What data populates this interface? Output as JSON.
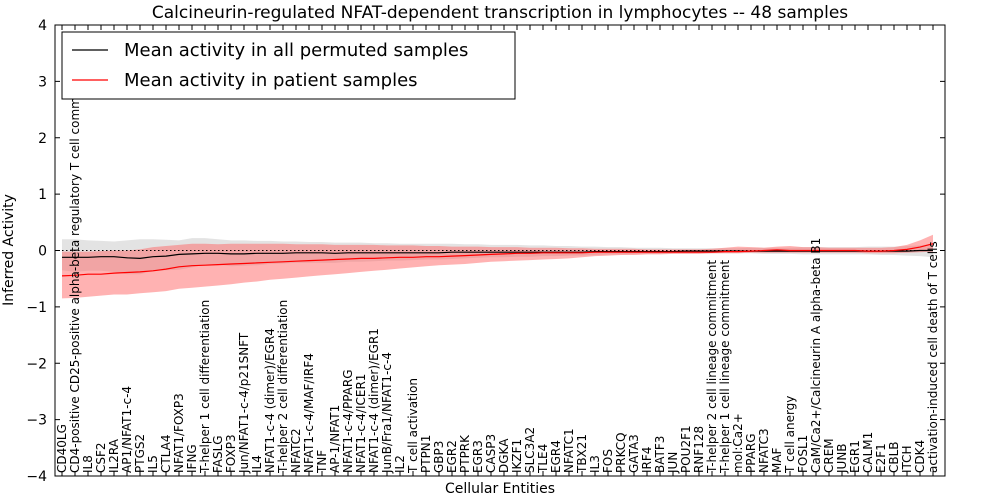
{
  "chart_data": {
    "type": "line",
    "title": "Calcineurin-regulated NFAT-dependent transcription in lymphocytes -- 48 samples",
    "xlabel": "Cellular Entities",
    "ylabel": "Inferred Activity",
    "ylim": [
      -4,
      4
    ],
    "yticks": [
      "4",
      "3",
      "2",
      "1",
      "0",
      "−1",
      "−2",
      "−3",
      "−4"
    ],
    "grid": false,
    "legend": {
      "placement": "top-left",
      "entries": [
        {
          "label": "Mean activity in all permuted samples",
          "color": "#000000"
        },
        {
          "label": "Mean activity in patient samples",
          "color": "#ff0000"
        }
      ]
    },
    "categories": [
      "CD40LG",
      "CD4-positive CD25-positive alpha-beta regulatory T cell commitment",
      "IL8",
      "CSF2",
      "IL2RA",
      "AP1/NFAT1-c-4",
      "PTGS2",
      "IL5",
      "CTLA4",
      "NFAT1/FOXP3",
      "IFNG",
      "T-helper 1 cell differentiation",
      "FASLG",
      "FOXP3",
      "Jun/NFAT1-c-4/p21SNFT",
      "IL4",
      "NFAT1-c-4 (dimer)/EGR4",
      "T-helper 2 cell differentiation",
      "NFATC2",
      "NFAT1-c-4/MAF/IRF4",
      "TNF",
      "AP-1/NFAT1",
      "NFAT1-c-4/PPARG",
      "NFAT1-c-4/ICER1",
      "NFAT1-c-4 (dimer)/EGR1",
      "JunB/Fra1/NFAT1-c-4",
      "IL2",
      "T cell activation",
      "PTPN1",
      "GBP3",
      "EGR2",
      "PTPRK",
      "EGR3",
      "CASP3",
      "DGKA",
      "IKZF1",
      "SLC3A2",
      "TLE4",
      "EGR4",
      "NFATC1",
      "TBX21",
      "IL3",
      "FOS",
      "PRKCQ",
      "GATA3",
      "IRF4",
      "BATF3",
      "JUN",
      "POU2F1",
      "RNF128",
      "T-helper 2 cell lineage commitment",
      "T-helper 1 cell lineage commitment",
      "mol:Ca2+",
      "PPARG",
      "NFATC3",
      "MAF",
      "T cell anergy",
      "FOSL1",
      "CaM/Ca2+/Calcineurin A alpha-beta B1",
      "CREM",
      "JUNB",
      "EGR1",
      "CALM1",
      "E2F1",
      "CBLB",
      "ITCH",
      "CDK4",
      "activation-induced cell death of T cells"
    ],
    "series": [
      {
        "name": "Mean activity in all permuted samples",
        "color": "#000000",
        "values": [
          -0.12,
          -0.12,
          -0.12,
          -0.11,
          -0.11,
          -0.13,
          -0.14,
          -0.11,
          -0.1,
          -0.07,
          -0.06,
          -0.05,
          -0.05,
          -0.06,
          -0.06,
          -0.05,
          -0.05,
          -0.05,
          -0.04,
          -0.04,
          -0.04,
          -0.05,
          -0.04,
          -0.04,
          -0.04,
          -0.04,
          -0.04,
          -0.04,
          -0.04,
          -0.04,
          -0.03,
          -0.03,
          -0.03,
          -0.03,
          -0.03,
          -0.03,
          -0.03,
          -0.03,
          -0.03,
          -0.03,
          -0.03,
          -0.02,
          -0.02,
          -0.02,
          -0.02,
          -0.02,
          -0.02,
          -0.02,
          -0.01,
          -0.01,
          -0.01,
          -0.01,
          -0.01,
          -0.01,
          -0.01,
          -0.01,
          -0.01,
          -0.01,
          -0.01,
          -0.01,
          -0.01,
          -0.01,
          -0.01,
          -0.01,
          -0.01,
          -0.01,
          0.0,
          0.0
        ],
        "band_low": [
          -0.35,
          -0.38,
          -0.36,
          -0.36,
          -0.38,
          -0.42,
          -0.42,
          -0.36,
          -0.35,
          -0.34,
          -0.3,
          -0.25,
          -0.25,
          -0.28,
          -0.27,
          -0.26,
          -0.24,
          -0.23,
          -0.22,
          -0.22,
          -0.22,
          -0.22,
          -0.2,
          -0.2,
          -0.19,
          -0.18,
          -0.18,
          -0.17,
          -0.16,
          -0.16,
          -0.15,
          -0.14,
          -0.13,
          -0.12,
          -0.12,
          -0.11,
          -0.11,
          -0.1,
          -0.1,
          -0.09,
          -0.09,
          -0.08,
          -0.07,
          -0.07,
          -0.06,
          -0.06,
          -0.06,
          -0.05,
          -0.05,
          -0.05,
          -0.05,
          -0.05,
          -0.05,
          -0.05,
          -0.06,
          -0.06,
          -0.06,
          -0.07,
          -0.07,
          -0.07,
          -0.07,
          -0.07,
          -0.07,
          -0.08,
          -0.08,
          -0.09,
          -0.1,
          -0.12
        ],
        "band_high": [
          0.2,
          0.2,
          0.18,
          0.17,
          0.16,
          0.18,
          0.2,
          0.2,
          0.19,
          0.18,
          0.22,
          0.22,
          0.2,
          0.18,
          0.18,
          0.17,
          0.17,
          0.16,
          0.16,
          0.15,
          0.15,
          0.14,
          0.14,
          0.14,
          0.13,
          0.13,
          0.12,
          0.12,
          0.12,
          0.12,
          0.12,
          0.11,
          0.11,
          0.1,
          0.1,
          0.1,
          0.09,
          0.09,
          0.08,
          0.08,
          0.07,
          0.07,
          0.06,
          0.06,
          0.05,
          0.05,
          0.05,
          0.04,
          0.04,
          0.04,
          0.04,
          0.04,
          0.04,
          0.05,
          0.05,
          0.05,
          0.05,
          0.06,
          0.06,
          0.06,
          0.06,
          0.06,
          0.07,
          0.07,
          0.07,
          0.08,
          0.09,
          0.12
        ]
      },
      {
        "name": "Mean activity in patient samples",
        "color": "#ff0000",
        "values": [
          -0.45,
          -0.44,
          -0.42,
          -0.42,
          -0.4,
          -0.39,
          -0.38,
          -0.36,
          -0.33,
          -0.29,
          -0.27,
          -0.26,
          -0.25,
          -0.24,
          -0.23,
          -0.22,
          -0.21,
          -0.2,
          -0.19,
          -0.18,
          -0.17,
          -0.16,
          -0.15,
          -0.14,
          -0.14,
          -0.13,
          -0.12,
          -0.12,
          -0.11,
          -0.11,
          -0.1,
          -0.09,
          -0.08,
          -0.07,
          -0.06,
          -0.05,
          -0.05,
          -0.04,
          -0.04,
          -0.04,
          -0.04,
          -0.03,
          -0.03,
          -0.03,
          -0.03,
          -0.03,
          -0.03,
          -0.03,
          -0.03,
          -0.03,
          -0.03,
          -0.02,
          -0.02,
          -0.01,
          0.0,
          0.01,
          0.0,
          0.0,
          0.0,
          0.0,
          0.0,
          0.0,
          -0.01,
          -0.01,
          0.0,
          0.02,
          0.06,
          0.12
        ],
        "band_low": [
          -0.85,
          -0.84,
          -0.82,
          -0.8,
          -0.78,
          -0.78,
          -0.76,
          -0.74,
          -0.72,
          -0.68,
          -0.66,
          -0.64,
          -0.62,
          -0.6,
          -0.57,
          -0.55,
          -0.52,
          -0.5,
          -0.48,
          -0.46,
          -0.44,
          -0.42,
          -0.4,
          -0.38,
          -0.36,
          -0.34,
          -0.32,
          -0.3,
          -0.28,
          -0.26,
          -0.25,
          -0.24,
          -0.22,
          -0.2,
          -0.19,
          -0.18,
          -0.17,
          -0.16,
          -0.15,
          -0.14,
          -0.12,
          -0.1,
          -0.09,
          -0.08,
          -0.08,
          -0.07,
          -0.07,
          -0.06,
          -0.06,
          -0.06,
          -0.05,
          -0.05,
          -0.05,
          -0.04,
          -0.04,
          -0.04,
          -0.04,
          -0.04,
          -0.04,
          -0.04,
          -0.04,
          -0.04,
          -0.05,
          -0.05,
          -0.05,
          -0.04,
          -0.03,
          -0.02
        ],
        "band_high": [
          -0.02,
          -0.02,
          -0.02,
          -0.01,
          0.0,
          0.0,
          0.02,
          0.06,
          0.08,
          0.1,
          0.12,
          0.12,
          0.11,
          0.12,
          0.12,
          0.12,
          0.12,
          0.12,
          0.11,
          0.11,
          0.11,
          0.1,
          0.1,
          0.1,
          0.1,
          0.09,
          0.09,
          0.09,
          0.08,
          0.08,
          0.07,
          0.07,
          0.07,
          0.06,
          0.06,
          0.06,
          0.05,
          0.05,
          0.05,
          0.04,
          0.04,
          0.03,
          0.03,
          0.03,
          0.03,
          0.02,
          0.02,
          0.02,
          0.02,
          0.02,
          0.03,
          0.05,
          0.07,
          0.06,
          0.05,
          0.07,
          0.08,
          0.06,
          0.06,
          0.05,
          0.05,
          0.05,
          0.05,
          0.05,
          0.06,
          0.1,
          0.18,
          0.28
        ]
      }
    ],
    "reference_line": {
      "y": 0,
      "style": "dotted"
    }
  }
}
